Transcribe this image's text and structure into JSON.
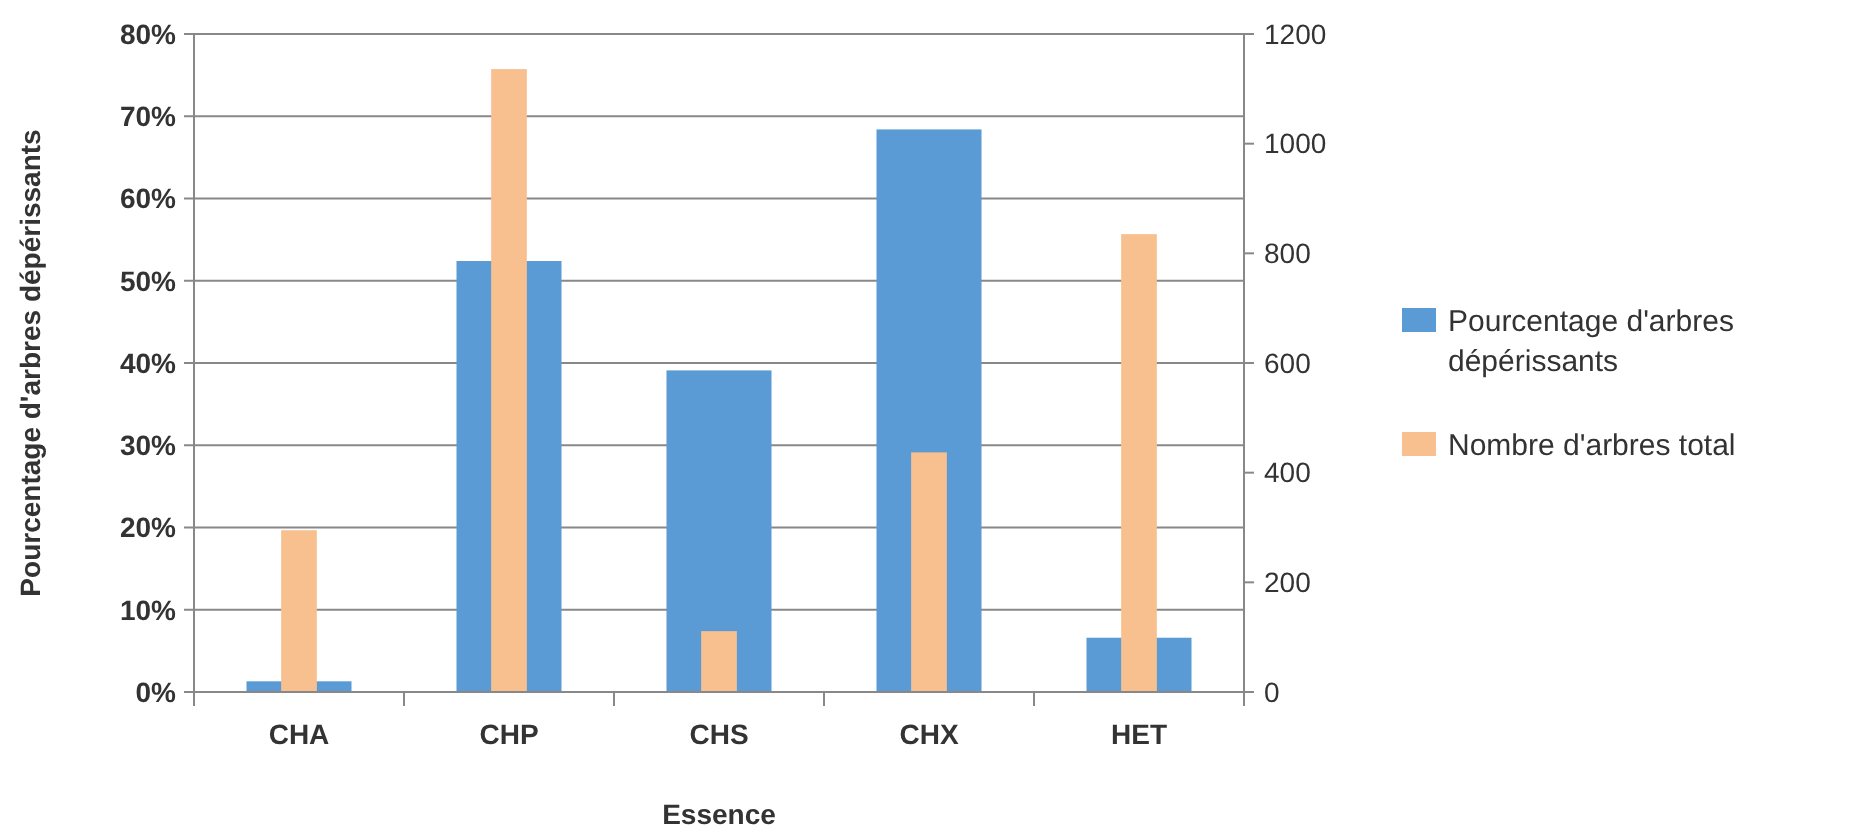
{
  "chart_data": {
    "type": "bar",
    "xlabel": "Essence",
    "ylabel": "Pourcentage d'arbres dépérissants",
    "categories": [
      "CHA",
      "CHP",
      "CHS",
      "CHX",
      "HET"
    ],
    "series": [
      {
        "name": "Pourcentage d'arbres dépérissants",
        "color": "#5b9bd5",
        "values": [
          1.3,
          52.4,
          39.1,
          68.4,
          6.6
        ]
      },
      {
        "name": "Nombre d'arbres total",
        "color": "#f8c08f",
        "axis": "y2",
        "values": [
          295,
          1136,
          111,
          437,
          835
        ]
      }
    ],
    "ylim": [
      0,
      80
    ],
    "yticks": [
      {
        "value": 0,
        "label": "0%"
      },
      {
        "value": 10,
        "label": "10%"
      },
      {
        "value": 20,
        "label": "20%"
      },
      {
        "value": 30,
        "label": "30%"
      },
      {
        "value": 40,
        "label": "40%"
      },
      {
        "value": 50,
        "label": "50%"
      },
      {
        "value": 60,
        "label": "60%"
      },
      {
        "value": 70,
        "label": "70%"
      },
      {
        "value": 80,
        "label": "80%"
      }
    ],
    "y2lim": [
      0,
      1200
    ],
    "y2ticks": [
      0,
      200,
      400,
      600,
      800,
      1000,
      1200
    ],
    "grid": "y",
    "legend": "right"
  }
}
